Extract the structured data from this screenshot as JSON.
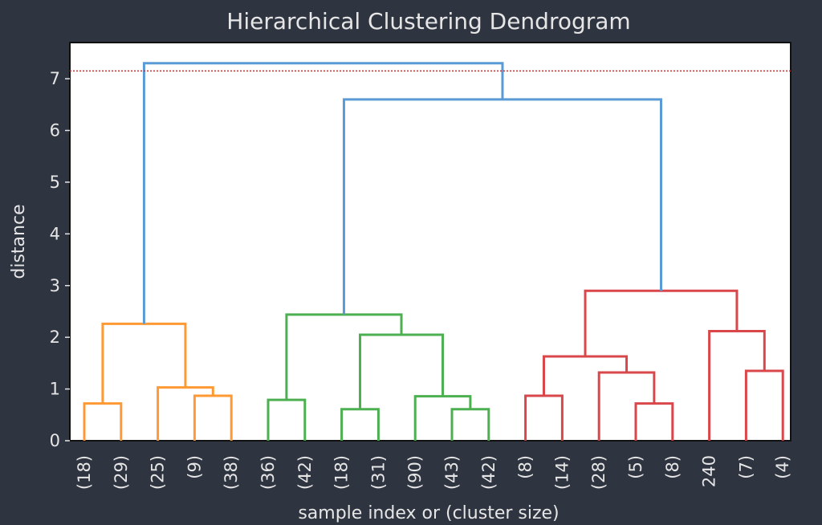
{
  "chart_data": {
    "type": "dendrogram",
    "title": "Hierarchical Clustering Dendrogram",
    "xlabel": "sample index or (cluster size)",
    "ylabel": "distance",
    "ylim": [
      0,
      7.7
    ],
    "yticks": [
      0,
      1,
      2,
      3,
      4,
      5,
      6,
      7
    ],
    "grid": false,
    "cutoff_line": {
      "y": 7.15,
      "color": "#d62728",
      "style": "dotted"
    },
    "leaves": [
      "(18)",
      "(29)",
      "(25)",
      "(9)",
      "(38)",
      "(36)",
      "(42)",
      "(18)",
      "(31)",
      "(90)",
      "(43)",
      "(42)",
      "(8)",
      "(14)",
      "(28)",
      "(5)",
      "(8)",
      "240",
      "(7)",
      "(4)"
    ],
    "colors": {
      "above_threshold": "#5b9bd5",
      "cluster1": "#ff9933",
      "cluster2": "#4caf50",
      "cluster3": "#d9474b"
    },
    "links": [
      {
        "left": 0,
        "right": 1,
        "height": 0.72,
        "color": "cluster1"
      },
      {
        "left": 3,
        "right": 4,
        "height": 0.87,
        "color": "cluster1"
      },
      {
        "left": 2,
        "right": 21,
        "height": 1.03,
        "color": "cluster1"
      },
      {
        "left": 20,
        "right": 22,
        "height": 2.26,
        "color": "cluster1"
      },
      {
        "left": 5,
        "right": 6,
        "height": 0.79,
        "color": "cluster2"
      },
      {
        "left": 7,
        "right": 8,
        "height": 0.61,
        "color": "cluster2"
      },
      {
        "left": 10,
        "right": 11,
        "height": 0.61,
        "color": "cluster2"
      },
      {
        "left": 9,
        "right": 26,
        "height": 0.86,
        "color": "cluster2"
      },
      {
        "left": 25,
        "right": 27,
        "height": 2.05,
        "color": "cluster2"
      },
      {
        "left": 24,
        "right": 28,
        "height": 2.44,
        "color": "cluster2"
      },
      {
        "left": 12,
        "right": 13,
        "height": 0.87,
        "color": "cluster3"
      },
      {
        "left": 15,
        "right": 16,
        "height": 0.72,
        "color": "cluster3"
      },
      {
        "left": 14,
        "right": 31,
        "height": 1.32,
        "color": "cluster3"
      },
      {
        "left": 30,
        "right": 32,
        "height": 1.63,
        "color": "cluster3"
      },
      {
        "left": 18,
        "right": 19,
        "height": 1.35,
        "color": "cluster3"
      },
      {
        "left": 17,
        "right": 34,
        "height": 2.12,
        "color": "cluster3"
      },
      {
        "left": 33,
        "right": 35,
        "height": 2.9,
        "color": "cluster3"
      },
      {
        "left": 29,
        "right": 36,
        "height": 6.6,
        "color": "above_threshold"
      },
      {
        "left": 23,
        "right": 37,
        "height": 7.3,
        "color": "above_threshold"
      }
    ]
  }
}
